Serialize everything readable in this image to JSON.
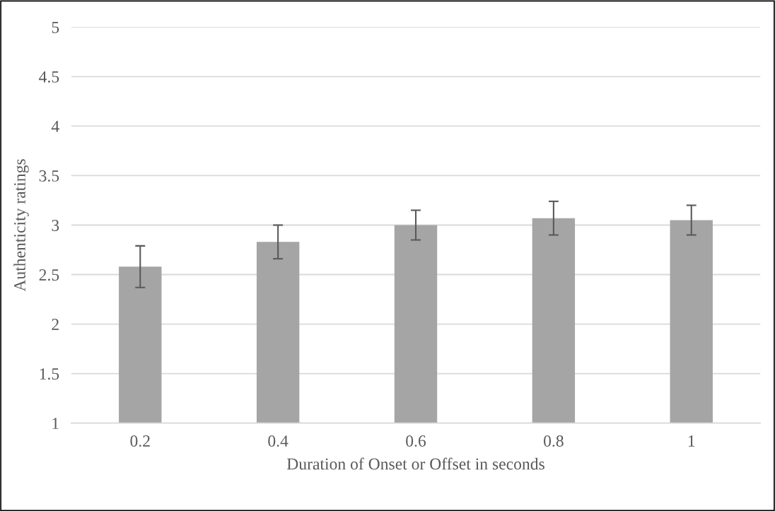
{
  "chart_data": {
    "type": "bar",
    "xlabel": "Duration of Onset or Offset in seconds",
    "ylabel": "Authenticity ratings",
    "categories": [
      "0.2",
      "0.4",
      "0.6",
      "0.8",
      "1"
    ],
    "values": [
      2.58,
      2.83,
      3.0,
      3.07,
      3.05
    ],
    "errors": [
      0.21,
      0.17,
      0.15,
      0.17,
      0.15
    ],
    "color": "#a5a5a5",
    "ylim": [
      1,
      5
    ],
    "yticks": [
      1,
      1.5,
      2,
      2.5,
      3,
      3.5,
      4,
      4.5,
      5
    ],
    "grid": "y"
  }
}
